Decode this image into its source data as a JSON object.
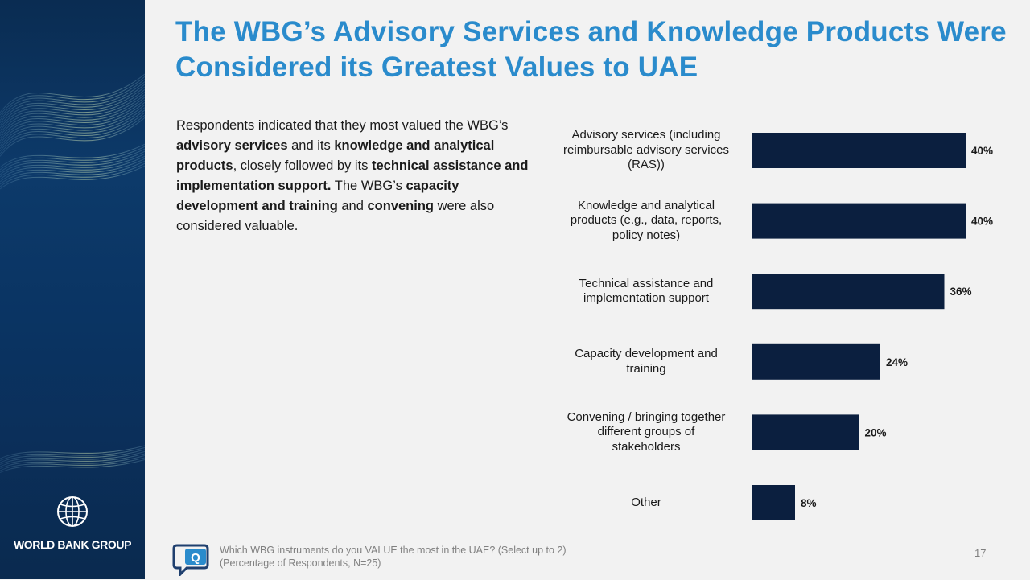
{
  "slide": {
    "title": "The WBG’s Advisory Services and Knowledge Products Were Considered its Greatest Values to UAE",
    "description": [
      {
        "text": "Respondents indicated that they most valued the WBG’s ",
        "bold": false
      },
      {
        "text": "advisory services",
        "bold": true
      },
      {
        "text": " and its ",
        "bold": false
      },
      {
        "text": "knowledge and analytical products",
        "bold": true
      },
      {
        "text": ", closely followed by its ",
        "bold": false
      },
      {
        "text": "technical assistance and implementation support.",
        "bold": true
      },
      {
        "text": " The WBG’s ",
        "bold": false
      },
      {
        "text": "capacity development and training",
        "bold": true
      },
      {
        "text": " and ",
        "bold": false
      },
      {
        "text": "convening",
        "bold": true
      },
      {
        "text": " were also considered valuable.",
        "bold": false
      }
    ],
    "footer": {
      "question": "Which WBG instruments do you VALUE the most in the UAE? (Select up to 2)",
      "note": "(Percentage of Respondents, N=25)"
    },
    "page_number": "17",
    "brand": {
      "name": "WORLD BANK GROUP",
      "logo_icon": "globe-icon",
      "footer_icon": "q-speech-bubble-icon"
    }
  },
  "colors": {
    "title": "#2a8bcc",
    "bar": "#0b1f3f",
    "sidebar": "#0b3260",
    "text": "#1a1a1a",
    "footer_text": "#808080"
  },
  "chart_data": {
    "type": "bar",
    "orientation": "horizontal",
    "categories": [
      "Advisory services (including reimbursable advisory services (RAS))",
      "Knowledge and analytical products (e.g., data, reports, policy notes)",
      "Technical assistance and implementation support",
      "Capacity development and training",
      "Convening / bringing together different groups of stakeholders",
      "Other"
    ],
    "category_lines": [
      [
        "Advisory services (including",
        "reimbursable advisory services",
        "(RAS))"
      ],
      [
        "Knowledge and analytical",
        "products (e.g., data, reports,",
        "policy notes)"
      ],
      [
        "Technical assistance and",
        "implementation support"
      ],
      [
        "Capacity development and",
        "training"
      ],
      [
        "Convening / bringing together",
        "different groups of",
        "stakeholders"
      ],
      [
        "Other"
      ]
    ],
    "values": [
      40,
      40,
      36,
      24,
      20,
      8
    ],
    "value_labels": [
      "40%",
      "40%",
      "36%",
      "24%",
      "20%",
      "8%"
    ],
    "unit": "%",
    "xlim": [
      0,
      40
    ],
    "grid": false,
    "legend": "none"
  }
}
